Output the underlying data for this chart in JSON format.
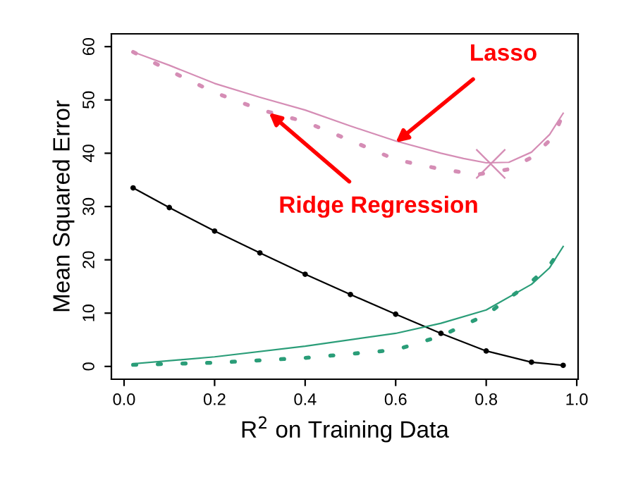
{
  "chart_data": {
    "type": "line",
    "xlabel": "R$^{2}$ on Training Data",
    "ylabel": "Mean Squared Error",
    "xlim": [
      -0.028,
      1.003
    ],
    "ylim": [
      -2.4,
      62.4
    ],
    "xticks": [
      {
        "value": 0,
        "label": "0.0"
      },
      {
        "value": 0.2,
        "label": "0.2"
      },
      {
        "value": 0.4,
        "label": "0.4"
      },
      {
        "value": 0.6,
        "label": "0.6"
      },
      {
        "value": 0.8,
        "label": "0.8"
      },
      {
        "value": 1,
        "label": "1.0"
      }
    ],
    "yticks": [
      0,
      10,
      20,
      30,
      40,
      50,
      60
    ],
    "grid": false,
    "legend": false,
    "series": [
      {
        "color": "#d58db5",
        "line_style": "solid",
        "marker": "none",
        "x": [
          0.02,
          0.1,
          0.2,
          0.3,
          0.4,
          0.5,
          0.6,
          0.7,
          0.75,
          0.8,
          0.85,
          0.9,
          0.94,
          0.97
        ],
        "values": [
          59,
          56.5,
          53.1,
          50.5,
          48.1,
          45.1,
          42.3,
          40,
          39,
          38.2,
          38.3,
          40.2,
          43.5,
          47.5
        ]
      },
      {
        "color": "#d58db5",
        "line_style": "dotted",
        "marker": "none",
        "x": [
          0.02,
          0.1,
          0.2,
          0.3,
          0.4,
          0.5,
          0.6,
          0.7,
          0.78,
          0.85,
          0.9,
          0.95,
          0.97
        ],
        "values": [
          59,
          55.5,
          51.4,
          48.2,
          45.9,
          42.4,
          38.8,
          37,
          36,
          37,
          39.2,
          43.2,
          47.5
        ]
      },
      {
        "color": "#000000",
        "line_style": "solid",
        "marker": "circle",
        "x": [
          0.02,
          0.1,
          0.2,
          0.3,
          0.4,
          0.5,
          0.6,
          0.7,
          0.8,
          0.9,
          0.97
        ],
        "values": [
          33.5,
          29.8,
          25.4,
          21.3,
          17.3,
          13.5,
          9.8,
          6.2,
          2.9,
          0.8,
          0.2
        ]
      },
      {
        "color": "#2a9d78",
        "line_style": "solid",
        "marker": "none",
        "x": [
          0.02,
          0.2,
          0.4,
          0.6,
          0.7,
          0.8,
          0.9,
          0.94,
          0.97
        ],
        "values": [
          0.5,
          1.8,
          3.8,
          6.2,
          8.1,
          10.6,
          15.4,
          18.5,
          22.5
        ]
      },
      {
        "color": "#2a9d78",
        "line_style": "dotted",
        "marker": "none",
        "x": [
          0.02,
          0.2,
          0.4,
          0.6,
          0.7,
          0.8,
          0.9,
          0.94,
          0.97
        ],
        "values": [
          0.3,
          0.7,
          1.6,
          3.1,
          5.7,
          9.7,
          15.9,
          19,
          22.5
        ]
      },
      {
        "type": "scatter",
        "color": "#d58db5",
        "marker": "cross",
        "x": [
          0.81
        ],
        "values": [
          38
        ]
      }
    ],
    "annotations": [
      {
        "text": "Lasso",
        "x": 0.6,
        "y": 42
      },
      {
        "text": "Ridge Regression",
        "x": 0.32,
        "y": 47.6
      }
    ]
  }
}
